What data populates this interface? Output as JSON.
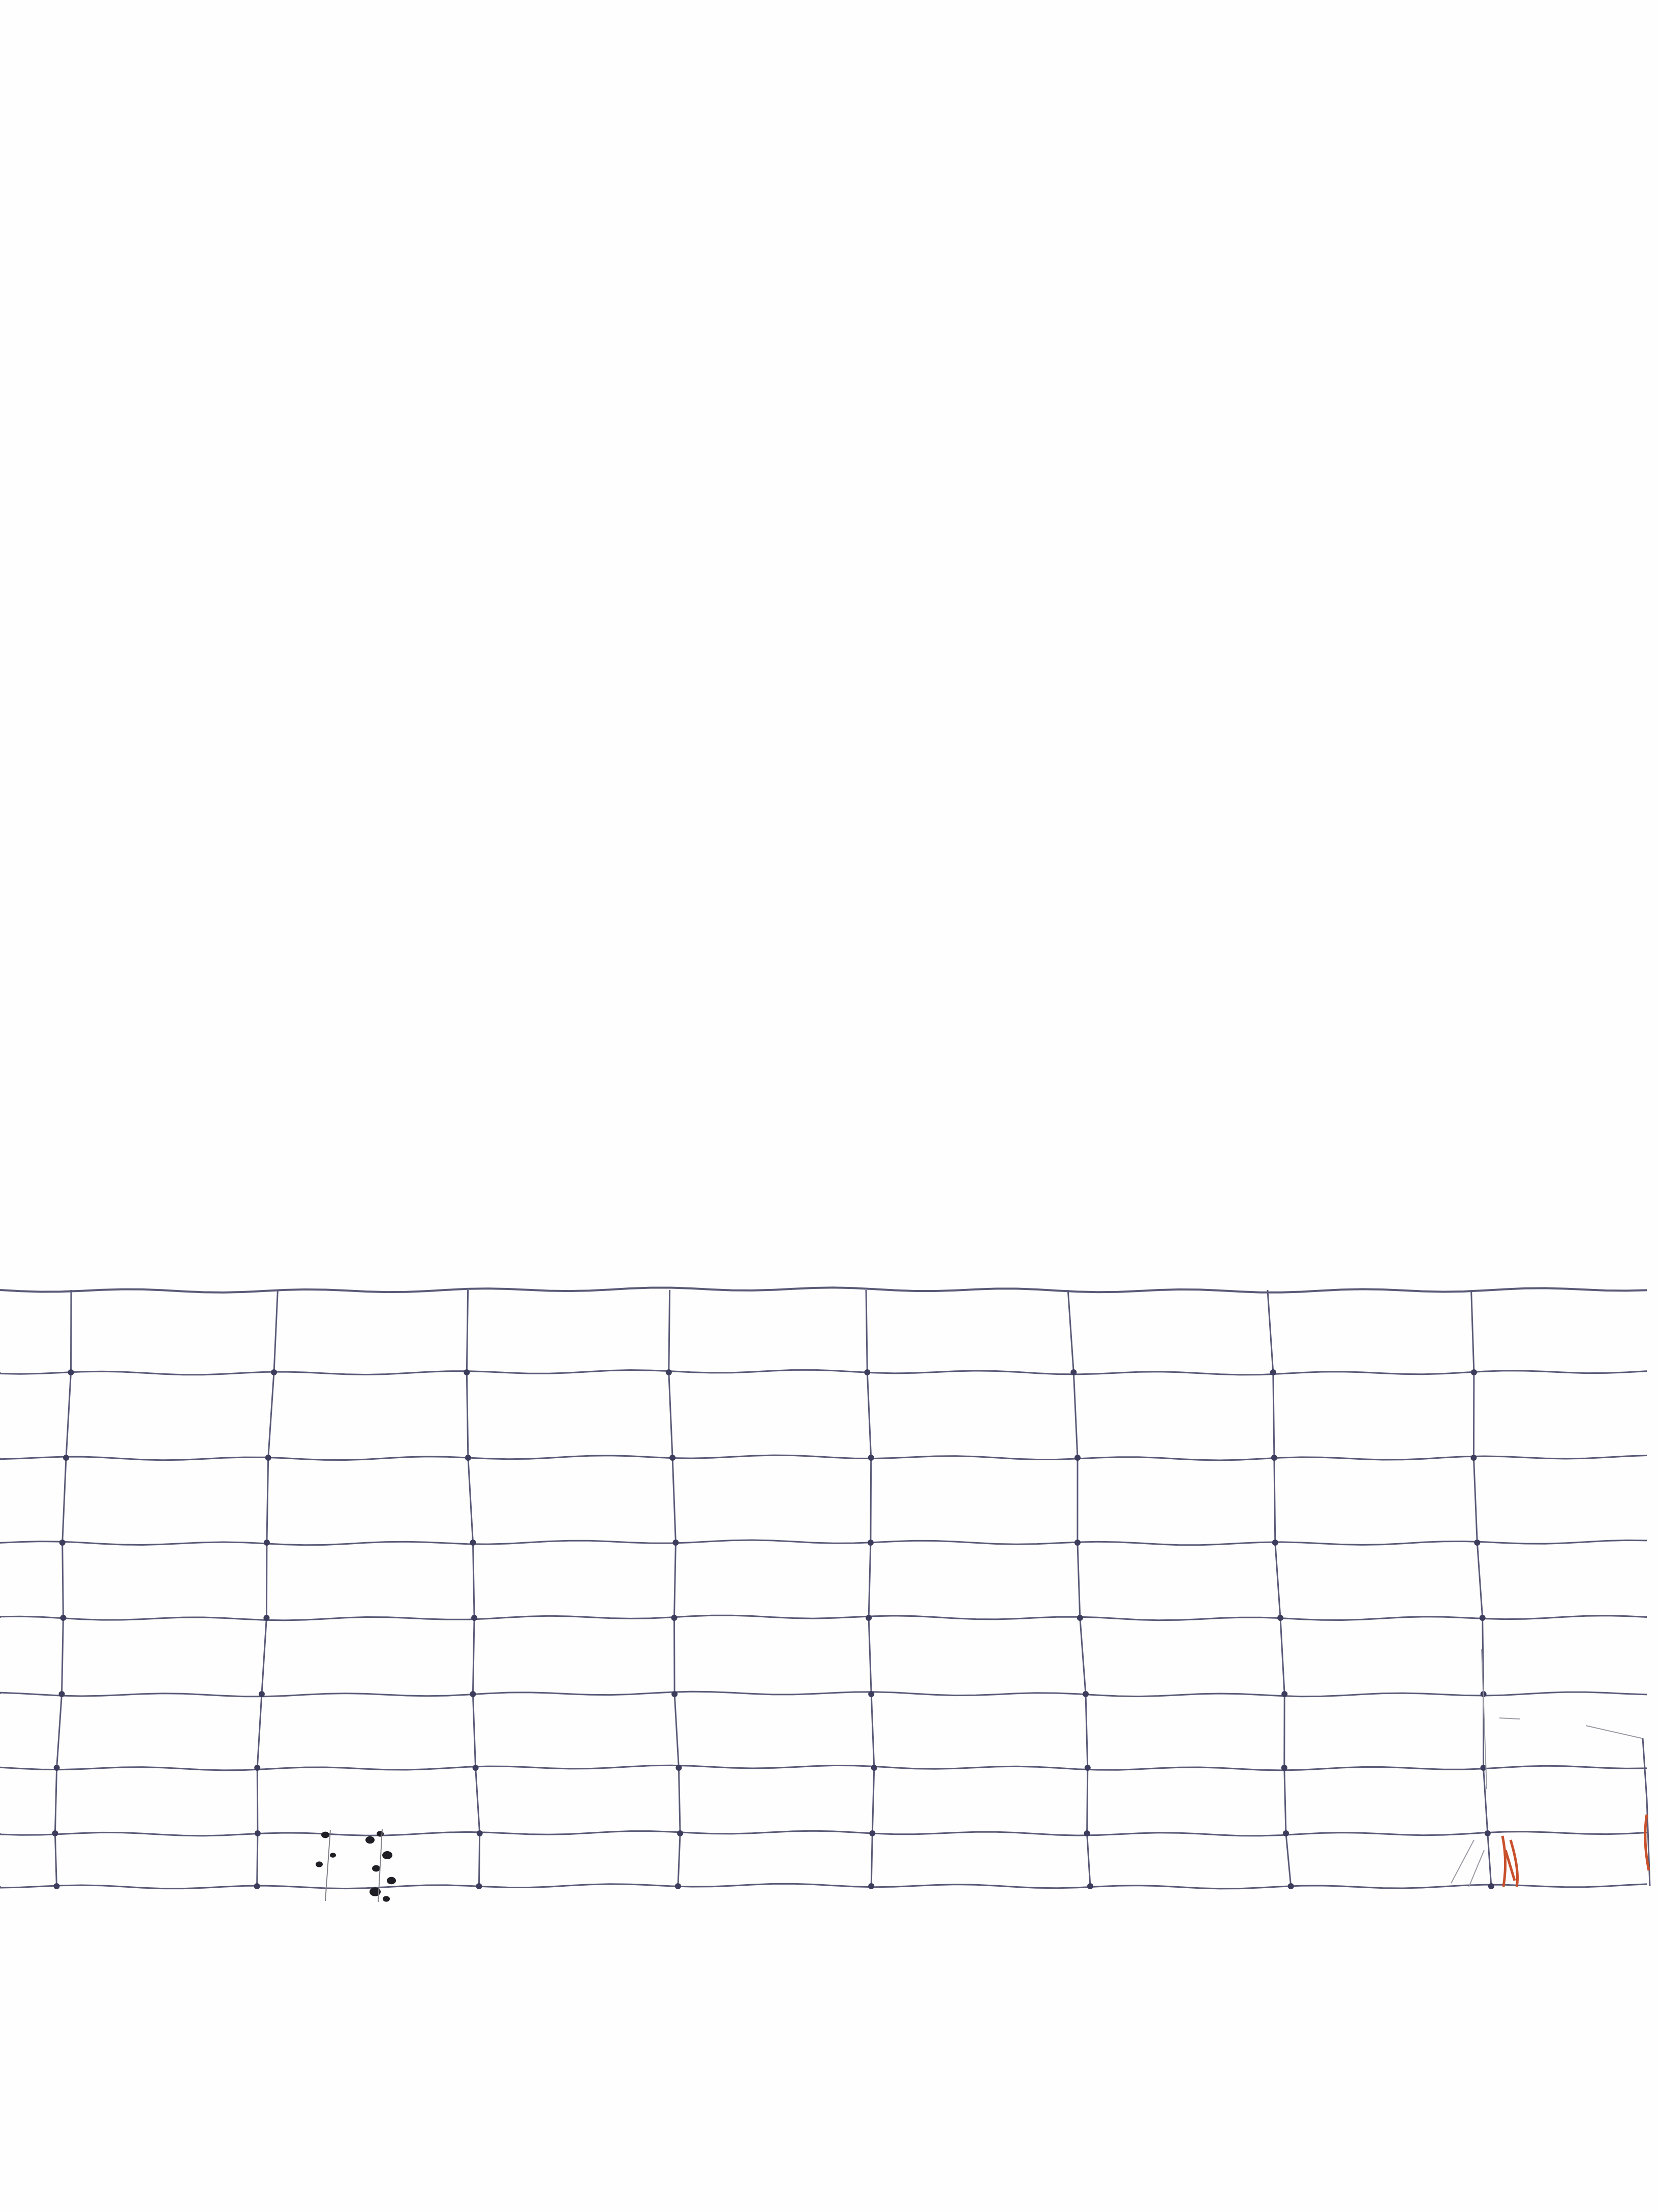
{
  "scene": {
    "subject": "wire-fence",
    "background_color": "#fefefe",
    "wire_color": "#5a5a78",
    "knot_color": "#3c3c5c",
    "weed_color": "#1e1e24",
    "rust_color": "#c8502a"
  }
}
